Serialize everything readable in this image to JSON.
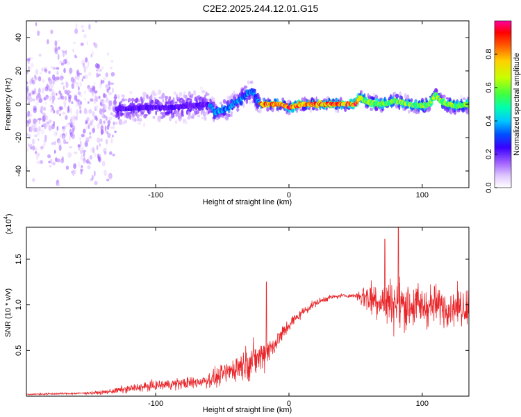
{
  "title": "C2E2.2025.244.12.01.G15",
  "colors": {
    "snr_line": "#e8262a",
    "axis": "#000000",
    "colormap": [
      "#ffffff",
      "#e8d0ff",
      "#b27cff",
      "#7a1eff",
      "#3a00ff",
      "#0060ff",
      "#00c8ff",
      "#00ffb0",
      "#40ff40",
      "#d0ff00",
      "#ffd000",
      "#ff6000",
      "#ff0000",
      "#ff00a0"
    ]
  },
  "chart_data": [
    {
      "type": "heatmap",
      "name": "spectrogram",
      "xlabel": "Height of straight line (km)",
      "ylabel": "Frequency (Hz)",
      "xlim": [
        -197,
        135
      ],
      "ylim": [
        -50,
        50
      ],
      "xticks": [
        -100,
        0,
        100
      ],
      "xtick_labels": [
        "-100",
        "0",
        "100"
      ],
      "yticks": [
        -40,
        -20,
        0,
        20,
        40
      ],
      "ytick_labels": [
        "-40",
        "-20",
        "0",
        "20",
        "40"
      ],
      "colorbar": {
        "label": "Normalized spectral amplitude",
        "range": [
          0,
          1
        ],
        "ticks": [
          0.0,
          0.2,
          0.4,
          0.6,
          0.8
        ],
        "tick_labels": [
          "0.0",
          "0.2",
          "0.4",
          "0.6",
          "0.8"
        ]
      },
      "ridge": {
        "x": [
          -150,
          -130,
          -110,
          -90,
          -75,
          -60,
          -55,
          -45,
          -35,
          -28,
          -22,
          -15,
          -5,
          0,
          10,
          20,
          30,
          40,
          50,
          53,
          60,
          70,
          80,
          90,
          100,
          105,
          110,
          115,
          120,
          125,
          135
        ],
        "freq": [
          -3,
          -3,
          -2,
          -2,
          -1,
          0,
          -5,
          -2,
          4,
          8,
          0,
          0,
          0,
          -2,
          0,
          0,
          0,
          0,
          0,
          4,
          1,
          0,
          2,
          0,
          -1,
          0,
          6,
          1,
          0,
          -1,
          0
        ]
      },
      "regions": [
        {
          "name": "noise",
          "x_range": [
            -197,
            -130
          ],
          "freq_spread": 50,
          "amplitude": 0.12
        },
        {
          "name": "weak-signal",
          "x_range": [
            -130,
            -60
          ],
          "freq_spread": 9,
          "amplitude": 0.3
        },
        {
          "name": "rising-signal",
          "x_range": [
            -60,
            -22
          ],
          "freq_spread": 6,
          "amplitude": 0.45
        },
        {
          "name": "strong-signal",
          "x_range": [
            -22,
            53
          ],
          "freq_spread": 3,
          "amplitude": 0.95
        },
        {
          "name": "upper-signal",
          "x_range": [
            53,
            135
          ],
          "freq_spread": 4,
          "amplitude": 0.7
        }
      ]
    },
    {
      "type": "line",
      "name": "snr",
      "xlabel": "Height of straight line (km)",
      "ylabel": "SNR (10 * v/v)",
      "y_scale_note": "(x10",
      "y_scale_exp": "4",
      "xlim": [
        -197,
        135
      ],
      "ylim": [
        0,
        1.85
      ],
      "xticks": [
        -100,
        0,
        100
      ],
      "xtick_labels": [
        "-100",
        "0",
        "100"
      ],
      "yticks": [
        0.5,
        1.0,
        1.5
      ],
      "ytick_labels": [
        "0.5",
        "1.0",
        "1.5"
      ],
      "envelope": {
        "x": [
          -197,
          -160,
          -140,
          -125,
          -110,
          -90,
          -70,
          -55,
          -45,
          -35,
          -28,
          -20,
          -12,
          -5,
          0,
          10,
          20,
          30,
          40,
          50,
          55,
          60,
          70,
          80,
          90,
          100,
          110,
          120,
          135
        ],
        "mean": [
          0.02,
          0.03,
          0.04,
          0.07,
          0.1,
          0.13,
          0.15,
          0.2,
          0.27,
          0.35,
          0.38,
          0.45,
          0.55,
          0.68,
          0.78,
          0.92,
          1.02,
          1.08,
          1.1,
          1.1,
          1.1,
          1.08,
          1.05,
          1.02,
          1.0,
          0.98,
          1.0,
          0.98,
          0.98
        ],
        "noise": [
          0.01,
          0.01,
          0.02,
          0.04,
          0.05,
          0.06,
          0.07,
          0.1,
          0.13,
          0.17,
          0.2,
          0.18,
          0.12,
          0.1,
          0.08,
          0.05,
          0.04,
          0.03,
          0.02,
          0.02,
          0.15,
          0.2,
          0.25,
          0.28,
          0.27,
          0.25,
          0.22,
          0.2,
          0.2
        ]
      },
      "peaks": [
        {
          "x": -17,
          "y": 1.25
        },
        {
          "x": 72,
          "y": 1.72
        },
        {
          "x": 82,
          "y": 1.85
        }
      ]
    }
  ]
}
